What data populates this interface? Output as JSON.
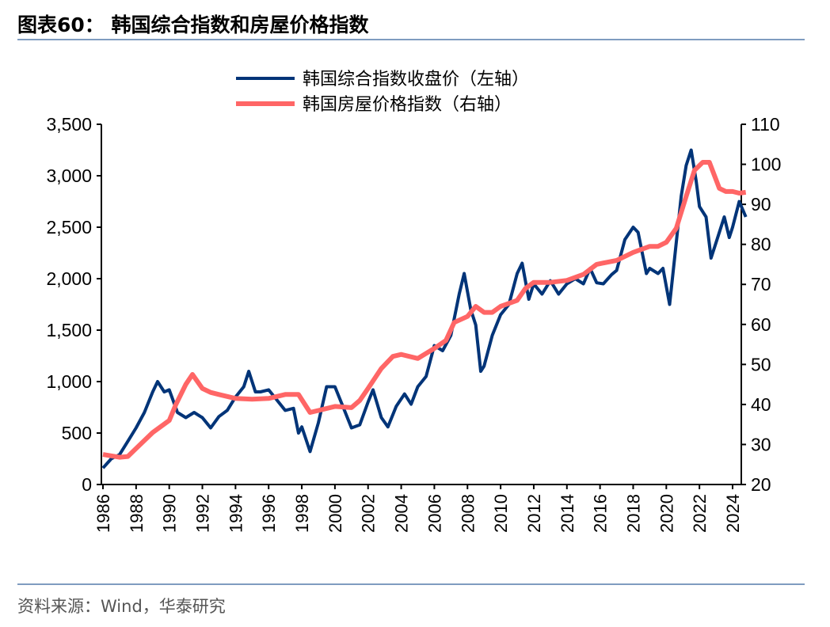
{
  "title": "图表60：  韩国综合指数和房屋价格指数",
  "source": "资料来源：Wind，华泰研究",
  "chart_data": {
    "type": "line",
    "title": "图表60：  韩国综合指数和房屋价格指数",
    "xlim": [
      1986,
      2024.8
    ],
    "x_ticks": [
      "1986",
      "1988",
      "1990",
      "1992",
      "1994",
      "1996",
      "1998",
      "2000",
      "2002",
      "2004",
      "2006",
      "2008",
      "2010",
      "2012",
      "2014",
      "2016",
      "2018",
      "2020",
      "2022",
      "2024"
    ],
    "y_left": {
      "lim": [
        0,
        3500
      ],
      "ticks": [
        "0",
        "500",
        "1,000",
        "1,500",
        "2,000",
        "2,500",
        "3,000",
        "3,500"
      ]
    },
    "y_right": {
      "lim": [
        20,
        110
      ],
      "ticks": [
        "20",
        "30",
        "40",
        "50",
        "60",
        "70",
        "80",
        "90",
        "100",
        "110"
      ]
    },
    "grid": false,
    "legend_position": "top-center",
    "series": [
      {
        "name": "韩国综合指数收盘价（左轴）",
        "axis": "left",
        "color": "#003478",
        "x": [
          1986.0,
          1986.5,
          1987.0,
          1987.5,
          1988.0,
          1988.5,
          1989.0,
          1989.3,
          1989.7,
          1990.0,
          1990.5,
          1991.0,
          1991.5,
          1992.0,
          1992.5,
          1993.0,
          1993.5,
          1994.0,
          1994.5,
          1994.8,
          1995.2,
          1995.5,
          1996.0,
          1996.5,
          1997.0,
          1997.5,
          1997.8,
          1998.0,
          1998.5,
          1999.0,
          1999.5,
          2000.0,
          2000.5,
          2001.0,
          2001.5,
          2002.0,
          2002.3,
          2002.8,
          2003.2,
          2003.7,
          2004.2,
          2004.6,
          2005.0,
          2005.5,
          2006.0,
          2006.5,
          2007.0,
          2007.5,
          2007.8,
          2008.2,
          2008.5,
          2008.8,
          2009.0,
          2009.5,
          2010.0,
          2010.5,
          2011.0,
          2011.3,
          2011.7,
          2012.0,
          2012.5,
          2013.0,
          2013.5,
          2014.0,
          2014.5,
          2015.0,
          2015.4,
          2015.8,
          2016.2,
          2016.7,
          2017.0,
          2017.5,
          2018.0,
          2018.3,
          2018.8,
          2019.0,
          2019.5,
          2019.8,
          2020.2,
          2020.5,
          2020.9,
          2021.2,
          2021.5,
          2021.8,
          2022.0,
          2022.4,
          2022.7,
          2023.0,
          2023.5,
          2023.8,
          2024.0,
          2024.4,
          2024.8
        ],
        "values": [
          160,
          250,
          290,
          420,
          550,
          700,
          900,
          1000,
          900,
          920,
          700,
          650,
          700,
          650,
          550,
          660,
          720,
          850,
          950,
          1100,
          900,
          900,
          920,
          820,
          720,
          740,
          500,
          560,
          320,
          600,
          950,
          950,
          750,
          550,
          580,
          800,
          920,
          650,
          560,
          760,
          880,
          780,
          950,
          1050,
          1350,
          1300,
          1450,
          1850,
          2050,
          1700,
          1550,
          1100,
          1150,
          1450,
          1650,
          1750,
          2050,
          2150,
          1800,
          1950,
          1850,
          1980,
          1850,
          1950,
          2000,
          1950,
          2100,
          1960,
          1950,
          2040,
          2080,
          2380,
          2500,
          2450,
          2050,
          2100,
          2050,
          2100,
          1750,
          2200,
          2800,
          3100,
          3250,
          2950,
          2700,
          2600,
          2200,
          2350,
          2600,
          2400,
          2500,
          2750,
          2600
        ]
      },
      {
        "name": "韩国房屋价格指数（右轴）",
        "axis": "right",
        "color": "#ff6666",
        "x": [
          1986.0,
          1987.0,
          1987.5,
          1988.0,
          1989.0,
          1990.0,
          1990.4,
          1991.0,
          1991.4,
          1992.0,
          1992.5,
          1993.0,
          1994.0,
          1995.0,
          1996.0,
          1997.0,
          1997.8,
          1998.5,
          1999.0,
          2000.0,
          2001.0,
          2001.5,
          2002.0,
          2002.8,
          2003.5,
          2004.0,
          2005.0,
          2006.0,
          2006.7,
          2007.2,
          2008.0,
          2008.5,
          2009.0,
          2009.5,
          2010.0,
          2011.0,
          2011.5,
          2012.0,
          2013.0,
          2014.0,
          2015.0,
          2015.8,
          2017.0,
          2018.0,
          2019.0,
          2019.5,
          2020.0,
          2020.6,
          2021.2,
          2021.7,
          2022.2,
          2022.6,
          2023.2,
          2023.6,
          2024.0,
          2024.4,
          2024.8
        ],
        "values": [
          27.5,
          26.8,
          27,
          29,
          33,
          36,
          40,
          45,
          47.5,
          44,
          43,
          42.5,
          41.5,
          41.3,
          41.5,
          42.5,
          42.5,
          38,
          38.5,
          39.5,
          39.2,
          41,
          44,
          49,
          52,
          52.5,
          51.5,
          54,
          56,
          60.5,
          62,
          64.5,
          63,
          63,
          64.5,
          66,
          69,
          70.5,
          70.5,
          71,
          72.5,
          75,
          76,
          78,
          79.5,
          79.5,
          80.5,
          84,
          92,
          98.5,
          100.5,
          100.5,
          94,
          93.2,
          93.2,
          92.8,
          93
        ]
      }
    ]
  }
}
